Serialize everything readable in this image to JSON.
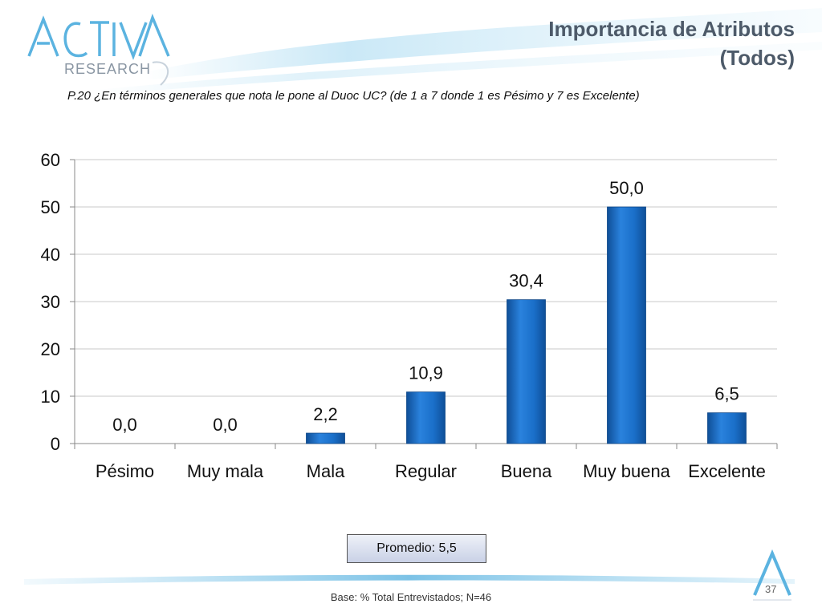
{
  "header": {
    "title_line1": "Importancia de Atributos",
    "title_line2": "(Todos)",
    "question": "P.20  ¿En términos generales que nota le pone al Duoc UC? (de 1 a 7 donde 1 es Pésimo y 7 es Excelente)"
  },
  "logo": {
    "brand": "ACTIVA",
    "sub": "RESEARCH"
  },
  "summary": {
    "promedio": "Promedio: 5,5",
    "base": "Base: % Total Entrevistados; N=46",
    "page_number": "37"
  },
  "colors": {
    "bar": "#1a6fc9",
    "bar_dark": "#0f4f98",
    "title": "#4d5a69",
    "accent": "#5bb3e0"
  },
  "chart_data": {
    "type": "bar",
    "categories": [
      "Pésimo",
      "Muy mala",
      "Mala",
      "Regular",
      "Buena",
      "Muy buena",
      "Excelente"
    ],
    "values": [
      0.0,
      0.0,
      2.2,
      10.9,
      30.4,
      50.0,
      6.5
    ],
    "data_labels": [
      "0,0",
      "0,0",
      "2,2",
      "10,9",
      "30,4",
      "50,0",
      "6,5"
    ],
    "yticks": [
      0,
      10,
      20,
      30,
      40,
      50,
      60
    ],
    "ylim": [
      0,
      60
    ],
    "grid": true,
    "legend": "none"
  }
}
